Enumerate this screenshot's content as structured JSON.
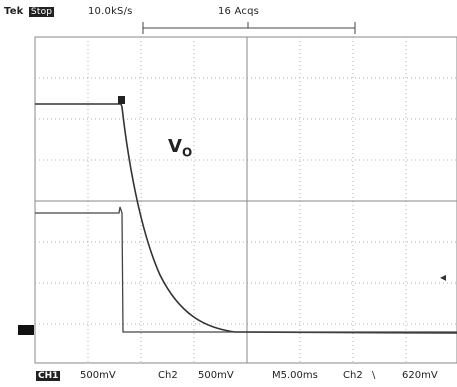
{
  "header": {
    "brand": "Tek",
    "mode_badge": "Stop",
    "sample_rate": "10.0kS/s",
    "acquisitions": "16 Acqs"
  },
  "trace_label": "V",
  "trace_label_sub": "O",
  "footer": {
    "ch1_badge": "CH1",
    "ch1_scale": "500mV",
    "ch2_label": "Ch2",
    "ch2_scale": "500mV",
    "timebase": "M5.00ms",
    "trigger_source": "Ch2",
    "trigger_slope": "\\",
    "trigger_level": "620mV"
  },
  "colors": {
    "background": "#ffffff",
    "grid": "#9a9a9a",
    "trace": "#333333"
  }
}
